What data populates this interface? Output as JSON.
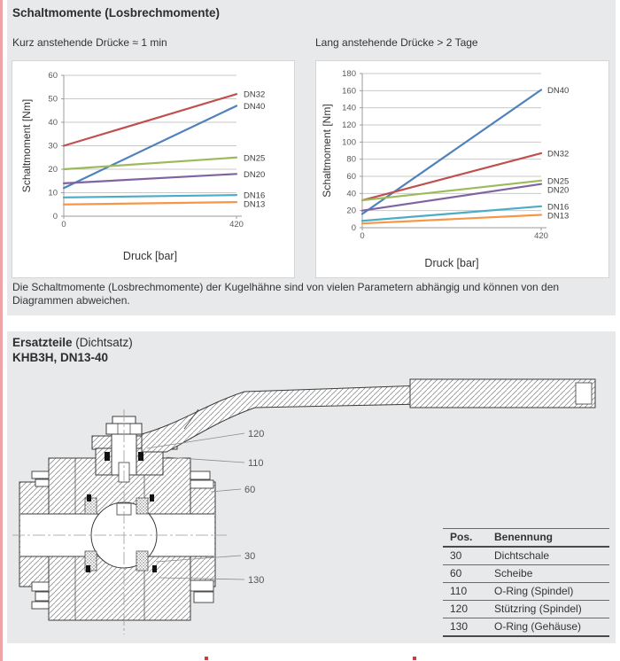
{
  "header": {
    "title": "Schaltmomente (Losbrechmomente)"
  },
  "note": "Die Schaltmomente (Losbrechmomente) der Kugelhähne sind von vielen Parametern abhängig und können von den Diagrammen abweichen.",
  "section2": {
    "title_bold": "Ersatzteile",
    "title_plain": " (Dichtsatz)",
    "subtitle": "KHB3H, DN13-40"
  },
  "chart_data": [
    {
      "type": "line",
      "title": "Kurz anstehende Drücke ≈ 1 min",
      "xlabel": "Druck [bar]",
      "ylabel": "Schaltmoment [Nm]",
      "x": [
        0,
        420
      ],
      "xlim": [
        0,
        420
      ],
      "ylim": [
        0,
        60
      ],
      "ytick_step": 10,
      "xticks": [
        0,
        420
      ],
      "grid": true,
      "legend_position": "line-end-labels",
      "series": [
        {
          "name": "DN32",
          "color": "#C0504D",
          "values": [
            30,
            52
          ]
        },
        {
          "name": "DN40",
          "color": "#4F81BD",
          "values": [
            12,
            47
          ]
        },
        {
          "name": "DN25",
          "color": "#9BBB59",
          "values": [
            20,
            25
          ]
        },
        {
          "name": "DN20",
          "color": "#8064A2",
          "values": [
            14,
            18
          ]
        },
        {
          "name": "DN16",
          "color": "#4BACC6",
          "values": [
            8,
            9
          ]
        },
        {
          "name": "DN13",
          "color": "#F79646",
          "values": [
            5,
            6
          ]
        }
      ]
    },
    {
      "type": "line",
      "title": "Lang anstehende Drücke > 2 Tage",
      "xlabel": "Druck [bar]",
      "ylabel": "Schaltmoment [Nm]",
      "x": [
        0,
        420
      ],
      "xlim": [
        0,
        420
      ],
      "ylim": [
        0,
        180
      ],
      "ytick_step": 20,
      "xticks": [
        0,
        420
      ],
      "grid": true,
      "legend_position": "line-end-labels",
      "series": [
        {
          "name": "DN40",
          "color": "#4F81BD",
          "values": [
            16,
            161
          ]
        },
        {
          "name": "DN32",
          "color": "#C0504D",
          "values": [
            32,
            87
          ]
        },
        {
          "name": "DN25",
          "color": "#9BBB59",
          "values": [
            32,
            55
          ]
        },
        {
          "name": "DN20",
          "color": "#8064A2",
          "values": [
            20,
            51
          ]
        },
        {
          "name": "DN16",
          "color": "#4BACC6",
          "values": [
            8,
            25
          ]
        },
        {
          "name": "DN13",
          "color": "#F79646",
          "values": [
            5,
            15
          ]
        }
      ]
    }
  ],
  "callouts": [
    "120",
    "110",
    "60",
    "30",
    "130"
  ],
  "parts_table": {
    "headers": [
      "Pos.",
      "Benennung"
    ],
    "rows": [
      {
        "pos": "30",
        "name": "Dichtschale"
      },
      {
        "pos": "60",
        "name": "Scheibe"
      },
      {
        "pos": "110",
        "name": "O-Ring (Spindel)"
      },
      {
        "pos": "120",
        "name": "Stützring (Spindel)"
      },
      {
        "pos": "130",
        "name": "O-Ring (Gehäuse)"
      }
    ]
  },
  "colors": {
    "accent_bar": "#eda4a4",
    "panel_bg": "#e8e9ea",
    "chart_panel_border": "#d5d5d7",
    "gridline": "#c9c9c9",
    "axis": "#9b9b9b",
    "red_mark": "#cc3b3b"
  }
}
